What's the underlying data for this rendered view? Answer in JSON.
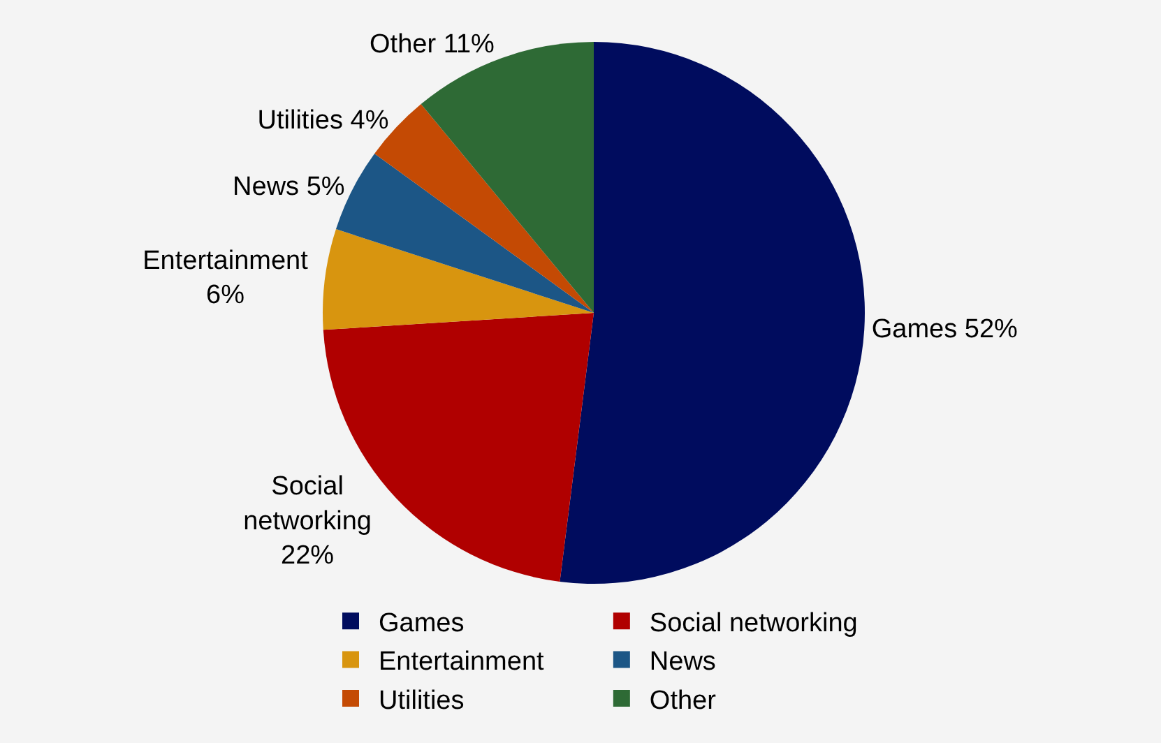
{
  "chart_data": {
    "type": "pie",
    "categories": [
      "Games",
      "Social networking",
      "Entertainment",
      "News",
      "Utilities",
      "Other"
    ],
    "values": [
      52,
      22,
      6,
      5,
      4,
      11
    ],
    "value_labels": [
      "52%",
      "22%",
      "6%",
      "5%",
      "4%",
      "11%"
    ],
    "colors": [
      "#000c5e",
      "#b00000",
      "#d8950f",
      "#1c5686",
      "#c44a04",
      "#2e6a35"
    ],
    "legend": "bottom"
  }
}
